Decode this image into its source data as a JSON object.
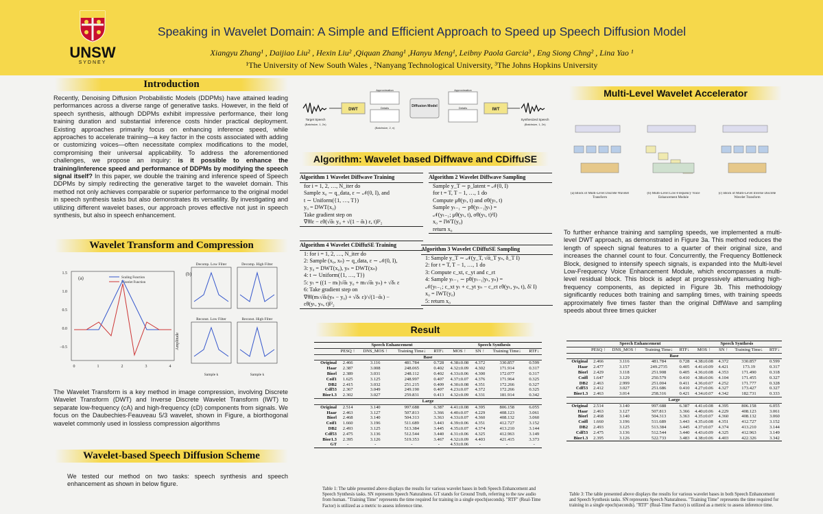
{
  "header": {
    "logo": "UNSW",
    "logo_sub": "SYDNEY",
    "title": "Speaking in Wavelet Domain: A Simple and Efficient Approach to Speed up Speech Diffusion Model",
    "authors": "Xiangyu Zhang¹ , Daijiao Liu² , Hexin Liu² ,Qiquan Zhang¹ ,Hanyu Meng¹, Leibny Paola Garcia³ , Eng Siong Chng² , Lina Yao ¹",
    "affiliations": "¹The University of New South Wales , ²Nanyang Technological University, ³The Johns Hopkins University"
  },
  "intro": {
    "heading": "Introduction",
    "text_before": "Recently, Denoising Diffusion Probabilistic Models (DDPMs) have attained leading performances across a diverse range of generative tasks. However, in the field of speech synthesis, although DDPMs exhibit impressive performance, their long training duration and substantial inference costs hinder practical deployment. Existing approaches primarily focus on enhancing inference speed, while approaches to accelerate training—a key factor in the costs associated with adding or customizing voices—often necessitate complex modifications to the model, compromising their universal applicability. To address the aforementioned challenges, we propose an inquiry: ",
    "bold": "is it possible to enhance the training/inference speed and performance of DDPMs by modifying the speech signal itself?",
    "text_after": " In this paper, we double the training and inference speed of Speech DDPMs by simply redirecting the generative target to the wavelet domain. This method not only achieves comparable or superior performance to the original model in speech synthesis tasks but also demonstrates its versatility. By investigating and utilizing different wavelet bases, our approach proves effective not just in speech synthesis, but also in speech enhancement."
  },
  "wavelet": {
    "heading": "Wavelet Transform and Compression",
    "figure": {
      "a_label": "(a)",
      "legend": [
        "Scaling Function",
        "Wavelet Function"
      ],
      "a_yticks": [
        "1.5",
        "1.0",
        "0.5",
        "0.0",
        "−0.5"
      ],
      "a_xticks": [
        "0",
        "1",
        "2",
        "3",
        "4"
      ],
      "b_label": "(b)",
      "amplitude": "Amplitude",
      "sample_k": "Sample k",
      "panels": [
        "Decomp. Low Filter",
        "Decomp. High Filter",
        "Reconst. Low Filter",
        "Reconst. High Filter"
      ]
    },
    "text": "The Wavelet Transform is a key method in image compression, involving Discrete Wavelet Transform (DWT) and Inverse Discrete Wavelet Transform (IWT) to separate low-frequency (cA) and high-frequency (cD) components from signals. We focus on the Daubechies-Feauveau 5/3 wavelet, shown in Figure, a biorthogonal wavelet commonly used in lossless compression algorithms"
  },
  "scheme": {
    "heading": "Wavelet-based Speech Diffusion Scheme",
    "text": "We tested our method on two tasks: speech synthesis and speech enhancement as shown in below figure."
  },
  "pipeline": {
    "target": "Target Speech",
    "target_shape": "(Batchsize, 1, 2n)",
    "dwt": "DWT",
    "approx": "Approximation",
    "details": "Details",
    "mid_shape": "(Batchsize, 2, n)",
    "model": "Diffusion Model",
    "iwt": "IWT",
    "output": "Synthesized Speech",
    "output_shape": "(Batchsize, 1, 2n)"
  },
  "algorithms": {
    "heading": "Algorithm: Wavelet based Diffwave and CDiffuSE",
    "items": [
      {
        "title": "Algorithm 1 Wavelet Diffwave Training",
        "lines": [
          "for i = 1, 2, …, N_iter do",
          "Sample x₀ ∼ q_data, ε ∼ 𝒩(0, I), and",
          "t ∼ Uniform({1, …, T})",
          "y₀ = DWT(x₀)",
          "Take gradient step on",
          "∇θ‖ε − εθ(√ᾱₜ y₀ + √(1 − ᾱₜ) ε, t)‖²₂"
        ]
      },
      {
        "title": "Algorithm 2 Wavelet Diffwave Sampling",
        "lines": [
          "Sample y_T ∼ p_latent = 𝒩(0, I)",
          "for t = T, T − 1, …, 1 do",
          "Compute μθ(yₜ, t) and σθ(yₜ, t)",
          "Sample yₜ₋₁ ∼ pθ(yₜ₋₁|yₜ) =",
          "𝒩(yₜ₋₁; μθ(yₜ, t), σθ(yₜ, t)²I)",
          "x₀ = IWT(y₀)",
          "return x₀"
        ]
      },
      {
        "title": "Algorithm 4 Wavelet CDiffuSE Training",
        "lines": [
          "1: for i = 1, 2, …, N_iter do",
          "2: Sample (x₀, xₙ) ∼ q_data, ε ∼ 𝒩(0, I),",
          "3: y₀ = DWT(x₀), yₙ = DWT(xₙ)",
          "4: t ∼ Uniform({1, …, T})",
          "5: yₜ = ((1 − mₜ)√ᾱₜ y₀ + mₜ√ᾱₜ yₙ) + √δₜ ε",
          "6: Take gradient step on",
          "∇θ‖(mₜ√ᾱₜ(yₙ − y₀) + √δₜ ε)/√(1−ᾱₜ) −",
          "εθ(yₜ, yₙ, t)‖²₂"
        ]
      },
      {
        "title": "Algorithm 3 Wavelet CDiffuSE Sampling",
        "lines": [
          "1: Sample y_T ∼ 𝒩(y_T, √ᾱ_T yₙ, δ_T I)",
          "2: for t = T, T − 1, …, 1 do",
          "3: Compute c_xt, c_yt and c_εt",
          "4: Sample yₜ₋₁ ∼ pθ(yₜ₋₁|yₜ, yₙ) =",
          "𝒩(yₜ₋₁; c_xt yₜ + c_yt yₙ − c_εt εθ(yₜ, yₙ, t), δ̃ₜ I)",
          "x₀ = IWT(y₀)",
          "5: return x₀"
        ]
      }
    ]
  },
  "result": {
    "heading": "Result",
    "table": {
      "groups": [
        "Speech Enhancement",
        "Speech Synthesis"
      ],
      "columns": [
        "PESQ ↑",
        "DNS_MOS ↑",
        "Training Time↓",
        "RTF↓",
        "MOS ↑",
        "SN ↑",
        "Training Time↓",
        "RTF↓"
      ],
      "sections": [
        {
          "label": "Base",
          "rows": [
            [
              "Original",
              "2.466",
              "3.116",
              "481.784",
              "0.728",
              "4.38±0.08",
              "4.372",
              "330.857",
              "0.599"
            ],
            [
              "Haar",
              "2.387",
              "3.008",
              "248.065",
              "0.402",
              "4.32±0.09",
              "4.302",
              "171.914",
              "0.317"
            ],
            [
              "Biorl",
              "2.389",
              "3.031",
              "248.112",
              "0.402",
              "4.33±0.06",
              "4.300",
              "172.077",
              "0.317"
            ],
            [
              "Coif1",
              "1.625",
              "3.125",
              "248.997",
              "0.407",
              "4.37±0.07",
              "4.376",
              "171.964",
              "0.325"
            ],
            [
              "DB2",
              "2.415",
              "3.032",
              "251.215",
              "0.409",
              "4.30±0.08",
              "4.351",
              "172.266",
              "0.327"
            ],
            [
              "Cdf53",
              "2.367",
              "3.049",
              "249.190",
              "0.407",
              "4.23±0.07",
              "4.372",
              "172.266",
              "0.325"
            ],
            [
              "Bior1.3",
              "2.302",
              "3.027",
              "259.831",
              "0.413",
              "4.32±0.09",
              "4.331",
              "181.914",
              "0.342"
            ]
          ]
        },
        {
          "label": "Large",
          "rows": [
            [
              "Original",
              "2.514",
              "3.140",
              "997.688",
              "6.387",
              "4.41±0.08",
              "4.395",
              "806.158",
              "6.055"
            ],
            [
              "Haar",
              "2.463",
              "3.127",
              "507.813",
              "3.366",
              "4.40±0.07",
              "4.229",
              "408.123",
              "3.061"
            ],
            [
              "Biorl",
              "2.468",
              "3.140",
              "504.313",
              "3.363",
              "4.33±0.07",
              "4.360",
              "408.132",
              "3.060"
            ],
            [
              "Coif1",
              "1.660",
              "3.196",
              "511.689",
              "3.443",
              "4.39±0.06",
              "4.351",
              "412.727",
              "3.152"
            ],
            [
              "DB2",
              "2.493",
              "3.125",
              "513.384",
              "3.445",
              "4.35±0.07",
              "4.374",
              "413.210",
              "3.144"
            ],
            [
              "Cdf53",
              "2.475",
              "3.136",
              "512.544",
              "3.440",
              "4.31±0.06",
              "4.325",
              "412.963",
              "3.149"
            ],
            [
              "Bior1.3",
              "2.395",
              "3.126",
              "519.353",
              "3.467",
              "4.32±0.09",
              "4.403",
              "421.415",
              "3.373"
            ],
            [
              "GT",
              "-",
              "-",
              "-",
              "-",
              "4.53±0.06",
              "-",
              "-",
              "-"
            ]
          ]
        }
      ],
      "caption": "Table 1: The table presented above displays the results for various wavelet bases in both Speech Enhancement and Speech Synthesis tasks. SN represents Speech Naturalness. GT stands for Ground Truth, referring to the raw audio from human. \"Training Time\" represents the time required for training in a single epoch(seconds). \"RTF\" (Real-Time Factor) is utilized as a metric to assess inference time."
    }
  },
  "accelerator": {
    "heading": "Multi-Level Wavelet Accelerator",
    "captions": [
      "(a) Block of Multi-Level Discrete Wavelet Transform",
      "(b) Multi-Level Low-Frequency Voice Enhancement Module",
      "(c) Block of Multi-Level Inverse Discrete Wavelet Transform"
    ],
    "text": "To further enhance training and sampling speeds, we implemented a multi-level DWT approach, as demonstrated in Figure 3a. This method reduces the length of speech signal features to a quarter of their original size, and increases the channel count to four. Concurrently, the Frequency Bottleneck Block, designed to intensify speech signals, is expanded into the Multi-level Low-Frequency Voice Enhancement Module, which encompasses a multi- level residual block. This block is adept at progressively attenuating high-frequency components, as depicted in Figure 3b. This methodology significantly reduces both training and sampling times, with training speeds approximately five times faster than the original DiffWave and sampling speeds about three times quicker",
    "table": {
      "groups": [
        "Speech Enhancement",
        "Speech Synthesis"
      ],
      "columns": [
        "PESQ ↑",
        "DNS_MOS ↑",
        "Training Time↓",
        "RTF↓",
        "MOS ↑",
        "SN ↑",
        "Training Time↓",
        "RTF↓"
      ],
      "sections": [
        {
          "label": "Base",
          "rows": [
            [
              "Original",
              "2.466",
              "3.116",
              "481.784",
              "0.728",
              "4.38±0.08",
              "4.372",
              "330.857",
              "0.599"
            ],
            [
              "Haar",
              "2.477",
              "3.157",
              "249.2735",
              "0.405",
              "4.41±0.09",
              "4.421",
              "173.19",
              "0.317"
            ],
            [
              "Biorl",
              "2.429",
              "3.118",
              "251.908",
              "0.405",
              "4.36±0.08",
              "4.353",
              "171.490",
              "0.318"
            ],
            [
              "Coifl",
              "1.647",
              "3.129",
              "250.579",
              "0.410",
              "4.38±0.06",
              "4.104",
              "171.455",
              "0.327"
            ],
            [
              "DB2",
              "2.463",
              "2.999",
              "251.004",
              "0.411",
              "4.36±0.07",
              "4.252",
              "171.777",
              "0.328"
            ],
            [
              "Cdf53",
              "2.412",
              "3.027",
              "251.686",
              "0.410",
              "4.27±0.06",
              "4.327",
              "173.427",
              "0.327"
            ],
            [
              "Bior1.3",
              "2.463",
              "3.014",
              "258.316",
              "0.421",
              "4.34±0.07",
              "4.342",
              "182.731",
              "0.333"
            ]
          ]
        },
        {
          "label": "Large",
          "rows": [
            [
              "Original",
              "2.514",
              "3.140",
              "997.688",
              "6.387",
              "4.41±0.08",
              "4.395",
              "806.158",
              "6.055"
            ],
            [
              "Haar",
              "2.463",
              "3.127",
              "507.813",
              "3.366",
              "4.40±0.06",
              "4.229",
              "408.123",
              "3.061"
            ],
            [
              "Biorl",
              "2.468",
              "3.140",
              "504.313",
              "3.363",
              "4.35±0.07",
              "4.360",
              "408.132",
              "3.060"
            ],
            [
              "Coifl",
              "1.660",
              "3.196",
              "511.689",
              "3.443",
              "4.35±0.08",
              "4.351",
              "412.727",
              "3.152"
            ],
            [
              "DB2",
              "2.493",
              "3.125",
              "513.384",
              "3.445",
              "4.37±0.07",
              "4.374",
              "413.210",
              "3.144"
            ],
            [
              "Cdf53",
              "2.475",
              "3.136",
              "512.544",
              "3.440",
              "4.43±0.09",
              "4.325",
              "412.963",
              "3.149"
            ],
            [
              "Bior1.3",
              "2.395",
              "3.126",
              "522.733",
              "3.483",
              "4.38±0.06",
              "4.403",
              "422.326",
              "3.342"
            ]
          ]
        }
      ],
      "caption": "Table 3: The table presented above displays the results for various wavelet bases in both Speech Enhancement and Speech Synthesis tasks. SN represents Speech Naturalness. \"Training Time\" represents the time required for training in a single epoch(seconds). \"RTF\" (Real-Time Factor) is utilized as a metric to assess inference time."
    }
  }
}
